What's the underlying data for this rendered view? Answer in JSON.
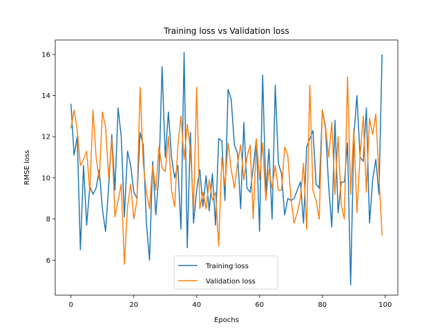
{
  "chart_data": {
    "type": "line",
    "title": "Training loss vs Validation loss",
    "xlabel": "Epochs",
    "ylabel": "RMSE loss",
    "xlim": [
      -5,
      104
    ],
    "ylim": [
      4.3,
      16.7
    ],
    "xticks": [
      0,
      20,
      40,
      60,
      80,
      100
    ],
    "yticks": [
      6,
      8,
      10,
      12,
      14,
      16
    ],
    "grid": false,
    "legend_position": "bottom-center",
    "x": [
      0,
      1,
      2,
      3,
      4,
      5,
      6,
      7,
      8,
      9,
      10,
      11,
      12,
      13,
      14,
      15,
      16,
      17,
      18,
      19,
      20,
      21,
      22,
      23,
      24,
      25,
      26,
      27,
      28,
      29,
      30,
      31,
      32,
      33,
      34,
      35,
      36,
      37,
      38,
      39,
      40,
      41,
      42,
      43,
      44,
      45,
      46,
      47,
      48,
      49,
      50,
      51,
      52,
      53,
      54,
      55,
      56,
      57,
      58,
      59,
      60,
      61,
      62,
      63,
      64,
      65,
      66,
      67,
      68,
      69,
      70,
      71,
      72,
      73,
      74,
      75,
      76,
      77,
      78,
      79,
      80,
      81,
      82,
      83,
      84,
      85,
      86,
      87,
      88,
      89,
      90,
      91,
      92,
      93,
      94,
      95,
      96,
      97,
      98,
      99
    ],
    "series": [
      {
        "name": "Training loss",
        "color": "#1f77b4",
        "values": [
          13.6,
          11.1,
          12.0,
          6.5,
          10.6,
          7.7,
          9.6,
          9.2,
          9.5,
          10.4,
          8.5,
          7.4,
          9.6,
          12.1,
          9.4,
          13.4,
          12.0,
          8.1,
          11.3,
          10.6,
          9.3,
          9.0,
          12.2,
          11.6,
          7.8,
          6.0,
          10.8,
          8.2,
          10.2,
          15.4,
          11.0,
          13.2,
          11.0,
          10.0,
          10.6,
          7.5,
          16.1,
          6.6,
          12.2,
          7.8,
          9.4,
          10.4,
          8.6,
          10.1,
          8.4,
          10.2,
          7.7,
          11.9,
          11.8,
          8.9,
          14.3,
          13.8,
          11.6,
          11.2,
          8.5,
          12.7,
          9.5,
          9.3,
          10.5,
          11.9,
          7.4,
          15.0,
          9.3,
          11.4,
          8.0,
          14.5,
          10.7,
          10.2,
          8.2,
          9.0,
          8.9,
          9.0,
          9.4,
          9.8,
          7.8,
          11.5,
          11.9,
          12.3,
          9.7,
          9.5,
          13.3,
          12.4,
          9.6,
          7.6,
          12.8,
          8.3,
          9.8,
          9.8,
          11.7,
          4.8,
          12.0,
          14.0,
          11.0,
          10.8,
          13.4,
          7.8,
          9.9,
          10.9,
          9.2,
          16.0
        ]
      },
      {
        "name": "Validation loss",
        "color": "#ff7f0e",
        "values": [
          12.4,
          13.3,
          12.3,
          10.6,
          10.9,
          11.3,
          9.3,
          13.3,
          11.0,
          9.9,
          13.2,
          12.5,
          10.0,
          11.9,
          8.1,
          8.9,
          9.7,
          5.8,
          8.6,
          9.7,
          8.0,
          8.9,
          14.4,
          10.7,
          9.3,
          8.5,
          10.6,
          9.4,
          11.5,
          10.5,
          10.3,
          12.0,
          9.4,
          8.6,
          11.5,
          13.0,
          10.9,
          12.6,
          11.4,
          8.4,
          14.4,
          8.5,
          9.3,
          8.5,
          9.9,
          8.9,
          9.3,
          6.7,
          11.0,
          9.6,
          11.7,
          10.4,
          9.5,
          10.7,
          11.6,
          9.9,
          11.0,
          11.6,
          8.0,
          11.9,
          9.9,
          11.7,
          8.9,
          10.4,
          9.5,
          10.6,
          9.4,
          9.4,
          11.5,
          11.1,
          9.0,
          7.8,
          8.3,
          9.0,
          10.7,
          7.5,
          14.5,
          9.4,
          8.9,
          8.0,
          13.3,
          12.5,
          11.0,
          12.7,
          9.2,
          12.0,
          8.7,
          8.0,
          14.9,
          9.2,
          12.4,
          8.3,
          11.1,
          13.0,
          9.3,
          12.9,
          12.1,
          13.1,
          10.1,
          7.2
        ]
      }
    ]
  }
}
